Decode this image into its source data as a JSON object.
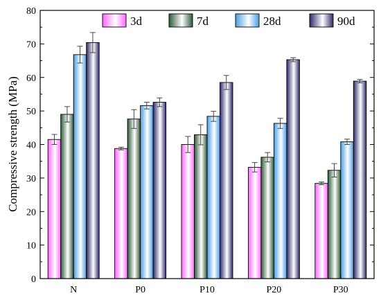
{
  "chart_data": {
    "type": "bar",
    "title": "",
    "xlabel": "",
    "ylabel": "Compressive strength (MPa)",
    "ylim": [
      0,
      80
    ],
    "yticks": [
      0,
      10,
      20,
      30,
      40,
      50,
      60,
      70,
      80
    ],
    "categories": [
      "N",
      "P0",
      "P10",
      "P20",
      "P30"
    ],
    "legend": {
      "placement": "top",
      "orientation": "horizontal"
    },
    "grid": false,
    "series": [
      {
        "name": "3d",
        "color_from": "#ff66ff",
        "color_to": "#ffffff",
        "values": [
          41.5,
          38.8,
          40.0,
          33.2,
          28.4
        ],
        "errors": [
          1.5,
          0.4,
          2.4,
          1.4,
          0.4
        ]
      },
      {
        "name": "7d",
        "color_from": "#2f5a3a",
        "color_to": "#ffffff",
        "values": [
          49.0,
          47.6,
          42.9,
          36.2,
          32.3
        ],
        "errors": [
          2.3,
          2.8,
          3.0,
          1.4,
          2.0
        ]
      },
      {
        "name": "28d",
        "color_from": "#4a9ee0",
        "color_to": "#ffffff",
        "values": [
          66.8,
          51.6,
          48.4,
          46.3,
          40.8
        ],
        "errors": [
          2.5,
          1.0,
          1.5,
          1.5,
          0.8
        ]
      },
      {
        "name": "90d",
        "color_from": "#2e2a6a",
        "color_to": "#ffffff",
        "values": [
          70.4,
          52.6,
          58.5,
          65.3,
          58.9
        ],
        "errors": [
          3.0,
          1.3,
          2.1,
          0.6,
          0.5
        ]
      }
    ]
  }
}
